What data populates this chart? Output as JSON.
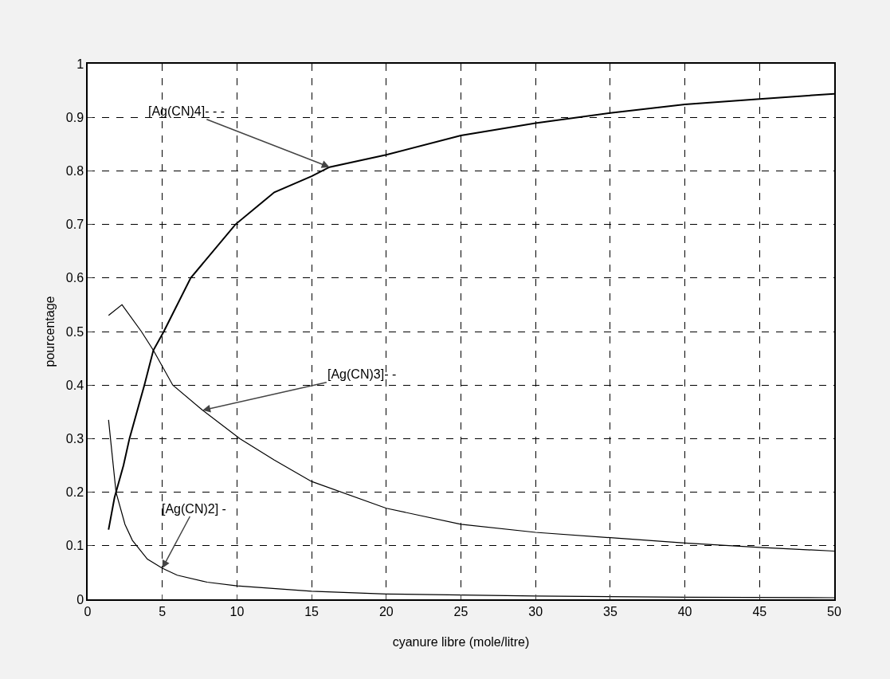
{
  "chart_data": {
    "type": "line",
    "xlabel": "cyanure libre (mole/litre)",
    "ylabel": "pourcentage",
    "xlim": [
      0,
      50
    ],
    "ylim": [
      0,
      1
    ],
    "xticks": [
      0,
      5,
      10,
      15,
      20,
      25,
      30,
      35,
      40,
      45,
      50
    ],
    "yticks": [
      0,
      0.1,
      0.2,
      0.3,
      0.4,
      0.5,
      0.6,
      0.7,
      0.8,
      0.9,
      1
    ],
    "grid": true,
    "line_style": "solid",
    "series": [
      {
        "color": "#000000",
        "x": [
          1.4,
          1.8,
          2.4,
          2.8,
          3.8,
          4.4,
          5.1,
          6.9,
          9.9,
          12.5,
          15,
          16.2,
          20,
          25,
          30,
          35,
          40,
          45,
          50
        ],
        "values": [
          0.13,
          0.19,
          0.25,
          0.3,
          0.4,
          0.465,
          0.5,
          0.6,
          0.7,
          0.76,
          0.79,
          0.807,
          0.83,
          0.866,
          0.889,
          0.908,
          0.924,
          0.934,
          0.944
        ]
      },
      {
        "color": "#000000",
        "x": [
          1.4,
          2.3,
          3.6,
          4.4,
          5.7,
          7.7,
          10.2,
          12.5,
          15,
          20,
          25,
          30,
          35,
          40,
          45,
          50
        ],
        "values": [
          0.53,
          0.55,
          0.5,
          0.465,
          0.4,
          0.353,
          0.3,
          0.26,
          0.22,
          0.17,
          0.14,
          0.125,
          0.115,
          0.105,
          0.097,
          0.09
        ]
      },
      {
        "color": "#000000",
        "x": [
          1.4,
          1.9,
          2.5,
          3,
          4,
          5,
          6,
          8,
          10,
          15,
          20,
          30,
          40,
          50
        ],
        "values": [
          0.335,
          0.2,
          0.14,
          0.11,
          0.075,
          0.058,
          0.045,
          0.032,
          0.025,
          0.015,
          0.01,
          0.006,
          0.004,
          0.003
        ]
      }
    ],
    "annotations": [
      {
        "text": "[Ag(CN)4]- - -",
        "x": 16.2,
        "y": 0.807
      },
      {
        "text": "[Ag(CN)3]- -",
        "x": 7.7,
        "y": 0.353
      },
      {
        "text": "[Ag(CN)2] -",
        "x": 5,
        "y": 0.058
      }
    ]
  }
}
